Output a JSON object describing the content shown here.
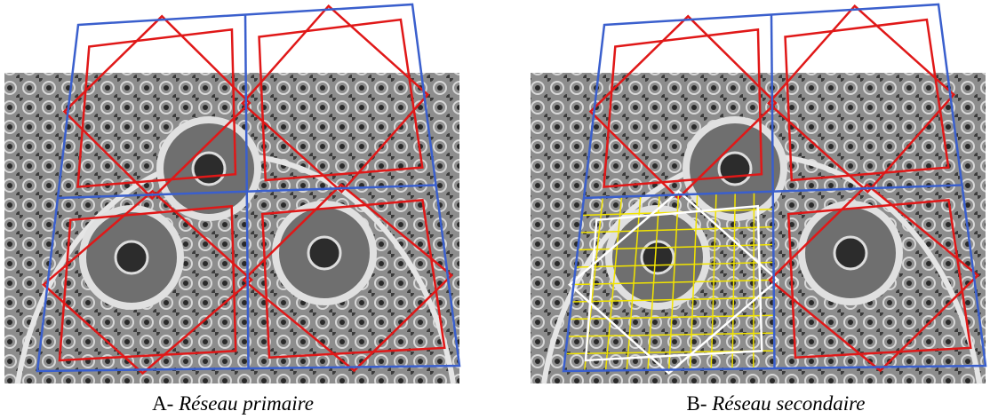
{
  "panels": [
    {
      "label": "A-",
      "caption": "Réseau primaire"
    },
    {
      "label": "B-",
      "caption": "Réseau secondaire"
    }
  ]
}
